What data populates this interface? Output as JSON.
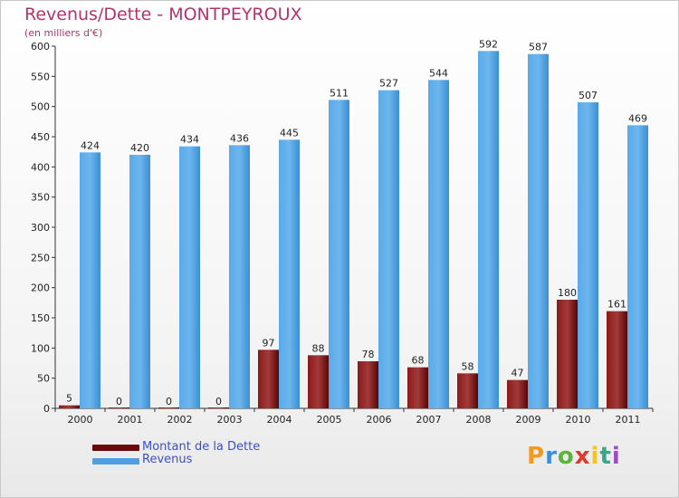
{
  "title": "Revenus/Dette - MONTPEYROUX",
  "subtitle": "(en milliers d'€)",
  "colors": {
    "dette": "#6b0a0a",
    "revenus": "#4f9fe0",
    "title": "#b5326e",
    "legend_text": "#3a4fc8"
  },
  "legend": {
    "dette_label": "Montant de la Dette",
    "revenus_label": "Revenus"
  },
  "logo": "Proxiti",
  "chart_data": {
    "type": "bar",
    "title": "Revenus/Dette - MONTPEYROUX",
    "subtitle": "(en milliers d'€)",
    "categories": [
      "2000",
      "2001",
      "2002",
      "2003",
      "2004",
      "2005",
      "2006",
      "2007",
      "2008",
      "2009",
      "2010",
      "2011"
    ],
    "series": [
      {
        "name": "Montant de la Dette",
        "values": [
          5,
          0,
          0,
          0,
          97,
          88,
          78,
          68,
          58,
          47,
          180,
          161
        ]
      },
      {
        "name": "Revenus",
        "values": [
          424,
          420,
          434,
          436,
          445,
          511,
          527,
          544,
          592,
          587,
          507,
          469
        ]
      }
    ],
    "ylim": [
      0,
      600
    ],
    "yticks": [
      0,
      50,
      100,
      150,
      200,
      250,
      300,
      350,
      400,
      450,
      500,
      550,
      600
    ],
    "grid": false,
    "legend_position": "bottom-left"
  }
}
